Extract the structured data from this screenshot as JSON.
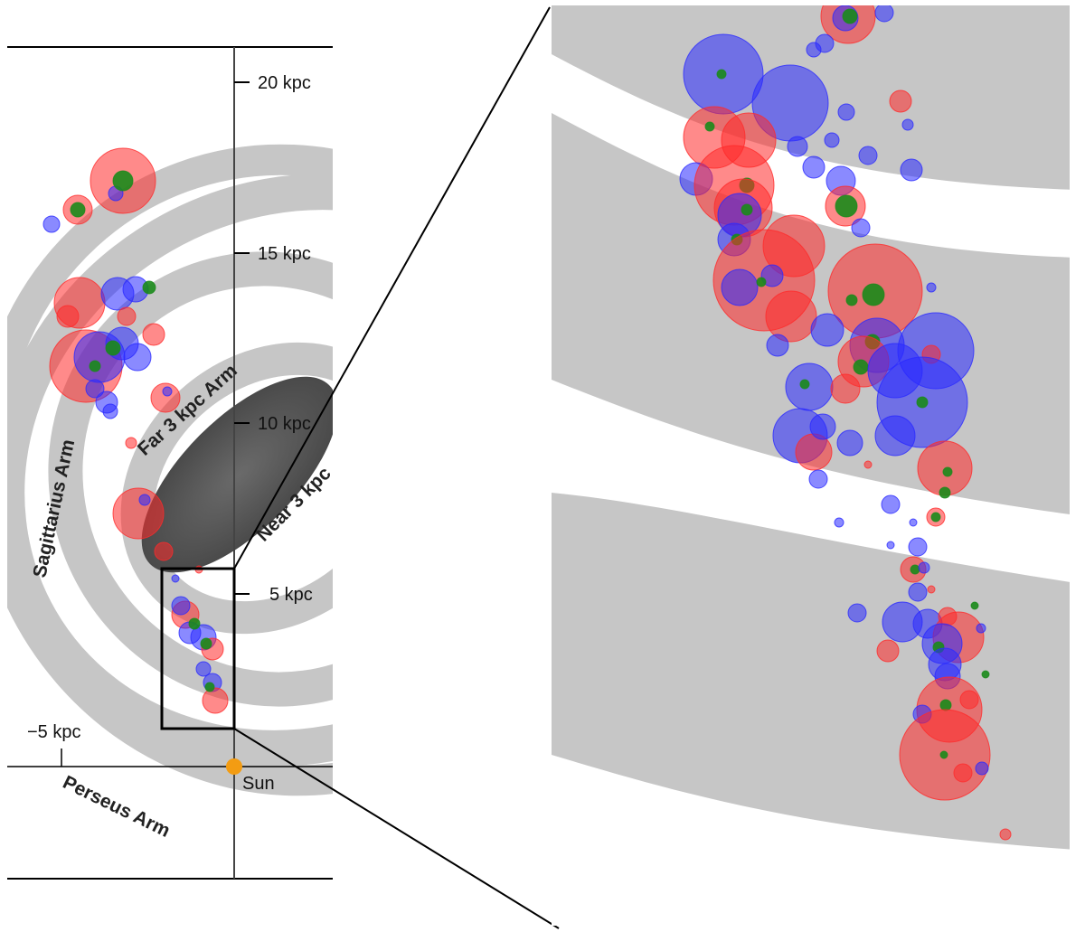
{
  "axis": {
    "y_ticks": [
      {
        "label": "20 kpc",
        "value": 20
      },
      {
        "label": "15 kpc",
        "value": 15
      },
      {
        "label": "10 kpc",
        "value": 10
      },
      {
        "label": "5 kpc",
        "value": 5
      }
    ],
    "x_tick": {
      "label": "−5 kpc",
      "value": -5
    }
  },
  "sun": {
    "label": "Sun",
    "color": "#f39c12"
  },
  "arms": {
    "sagittarius": "Sagittarius Arm",
    "far3kpc": "Far 3 kpc Arm",
    "near3kpc": "Near 3 kpc",
    "perseus": "Perseus Arm"
  },
  "colors": {
    "red": "#ff2a2a",
    "blue": "#2a2aff",
    "green": "#1a8a1a",
    "arm_band": "#c6c6c6",
    "bar": "#5a5a5a"
  }
}
